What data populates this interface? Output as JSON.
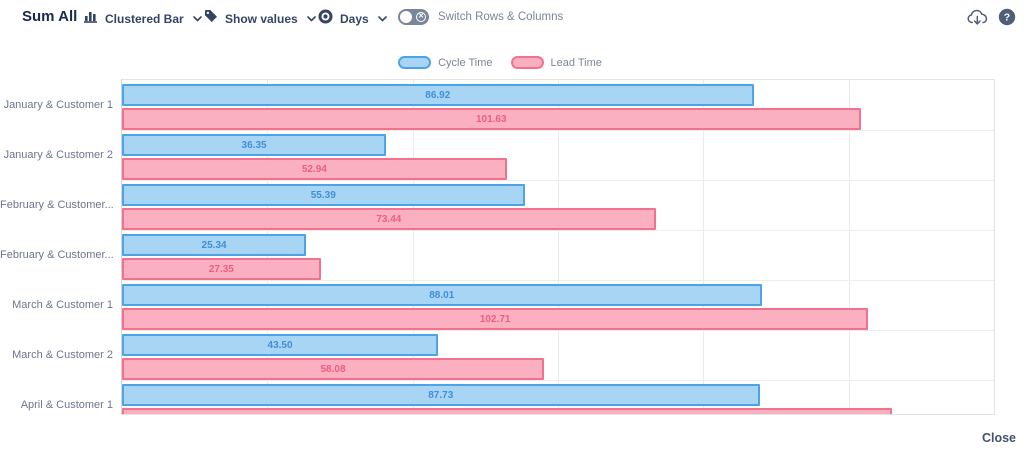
{
  "header": {
    "title": "Sum All",
    "controls": [
      {
        "icon": "bar-chart-icon",
        "label": "Clustered Bar"
      },
      {
        "icon": "tag-icon",
        "label": "Show values"
      },
      {
        "icon": "clock-icon",
        "label": "Days"
      }
    ],
    "toggle": {
      "label": "Switch Rows & Columns",
      "state": "off"
    },
    "actions": [
      {
        "icon": "cloud-download-icon"
      },
      {
        "icon": "help-icon"
      }
    ]
  },
  "legend": {
    "items": [
      {
        "label": "Cycle Time",
        "fill": "#A9D5F5",
        "border": "#4BA4E8"
      },
      {
        "label": "Lead Time",
        "fill": "#FBB0C1",
        "border": "#F3718F"
      }
    ]
  },
  "footer": {
    "close_label": "Close"
  },
  "colors": {
    "cycle_fill": "#A9D5F5",
    "cycle_border": "#4BA4E8",
    "cycle_label": "#3F8FD8",
    "lead_fill": "#FBB0C1",
    "lead_border": "#F3718F",
    "lead_label": "#ED5E7E",
    "title_text": "#172B4D",
    "toolbar_text": "#344563",
    "muted_text": "#6B778C",
    "gridline": "#EBEBEB",
    "plot_border": "#E3E3E3"
  },
  "chart_data": {
    "type": "bar",
    "orientation": "horizontal",
    "title": "",
    "xlabel": "Days",
    "ylabel": "",
    "categories": [
      "January & Customer 1",
      "January & Customer 2",
      "February & Customer...",
      "February & Customer...",
      "March & Customer 1",
      "March & Customer 2",
      "April & Customer 1"
    ],
    "series": [
      {
        "name": "Cycle Time",
        "values": [
          86.92,
          36.35,
          55.39,
          25.34,
          88.01,
          43.5,
          87.73
        ],
        "labels": [
          "86.92",
          "36.35",
          "55.39",
          "25.34",
          "88.01",
          "43.50",
          "87.73"
        ]
      },
      {
        "name": "Lead Time",
        "values": [
          101.63,
          52.94,
          73.44,
          27.35,
          102.71,
          58.08,
          106
        ],
        "labels": [
          "101.63",
          "52.94",
          "73.44",
          "27.35",
          "102.71",
          "58.08",
          ""
        ]
      }
    ],
    "xlim": [
      0,
      120
    ],
    "gridline_interval": 20,
    "grid": true,
    "legend_position": "top"
  }
}
